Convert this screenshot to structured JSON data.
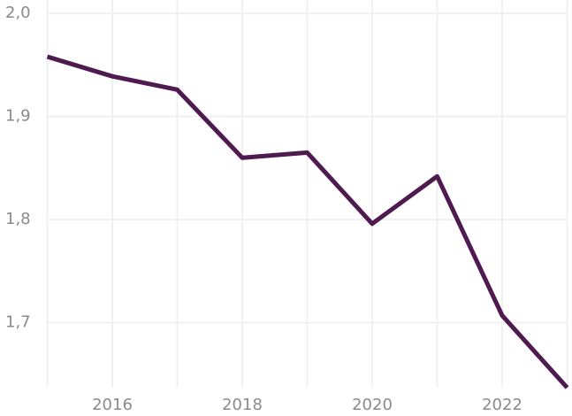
{
  "chart_data": {
    "type": "line",
    "x": [
      2015,
      2016,
      2017,
      2018,
      2019,
      2020,
      2021,
      2022,
      2023
    ],
    "series": [
      {
        "color": "#4e1a4f",
        "values": [
          1.958,
          1.939,
          1.926,
          1.86,
          1.865,
          1.796,
          1.842,
          1.707,
          1.637
        ]
      }
    ],
    "xlim": [
      2015,
      2023
    ],
    "xticks": [
      2016,
      2018,
      2020,
      2022
    ],
    "xgrid_minor": [
      2015,
      2017,
      2019,
      2021,
      2023
    ],
    "ylim": [
      1.637,
      2.013
    ],
    "yticks": [
      {
        "value": 1.7,
        "label": "1,7"
      },
      {
        "value": 1.8,
        "label": "1,8"
      },
      {
        "value": 1.9,
        "label": "1,9"
      },
      {
        "value": 2.0,
        "label": "2,0"
      }
    ],
    "grid": true
  }
}
